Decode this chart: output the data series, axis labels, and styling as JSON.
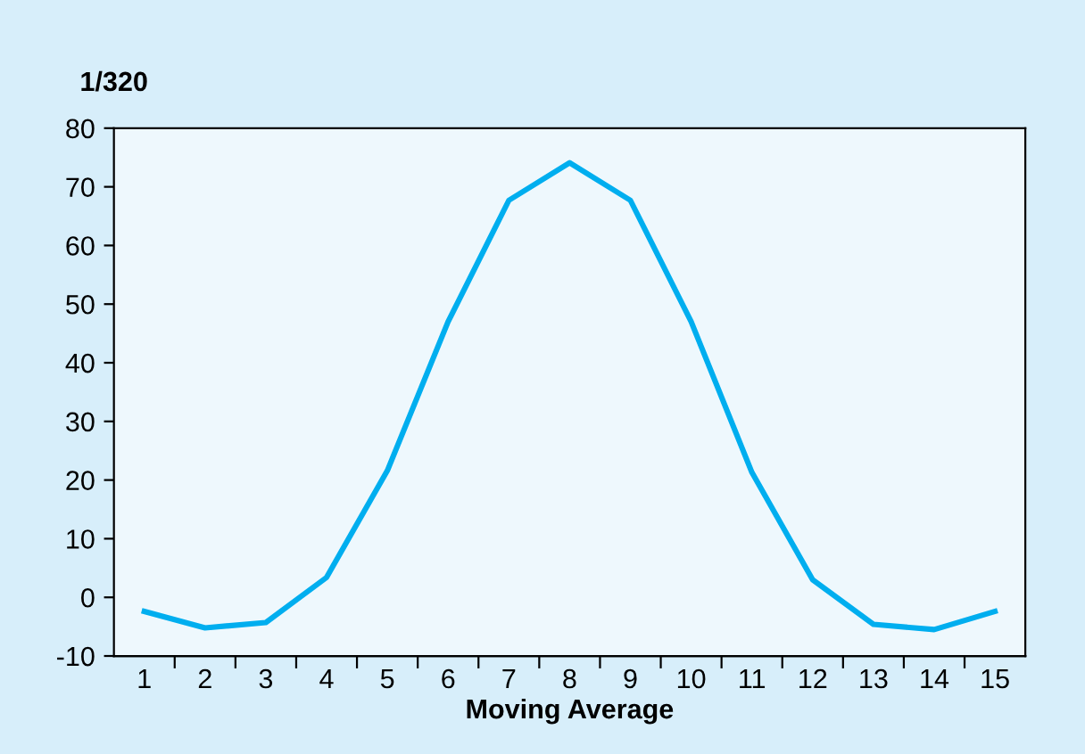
{
  "chart_data": {
    "type": "line",
    "ylabel": "1/320",
    "xlabel": "Moving Average",
    "categories": [
      "1",
      "2",
      "3",
      "4",
      "5",
      "6",
      "7",
      "8",
      "9",
      "10",
      "11",
      "12",
      "13",
      "14",
      "15"
    ],
    "series": [
      {
        "color": "#00aeef",
        "values": [
          -2.4,
          -5.2,
          -4.3,
          3.4,
          21.6,
          47,
          67.7,
          74.1,
          67.7,
          47,
          21.3,
          3,
          -4.6,
          -5.5,
          -2.4
        ]
      }
    ],
    "ylim": [
      -10,
      80
    ],
    "yticks": [
      -10,
      0,
      10,
      20,
      30,
      40,
      50,
      60,
      70,
      80
    ],
    "grid": false,
    "legend": false,
    "marker": "none",
    "line_style": "solid"
  }
}
